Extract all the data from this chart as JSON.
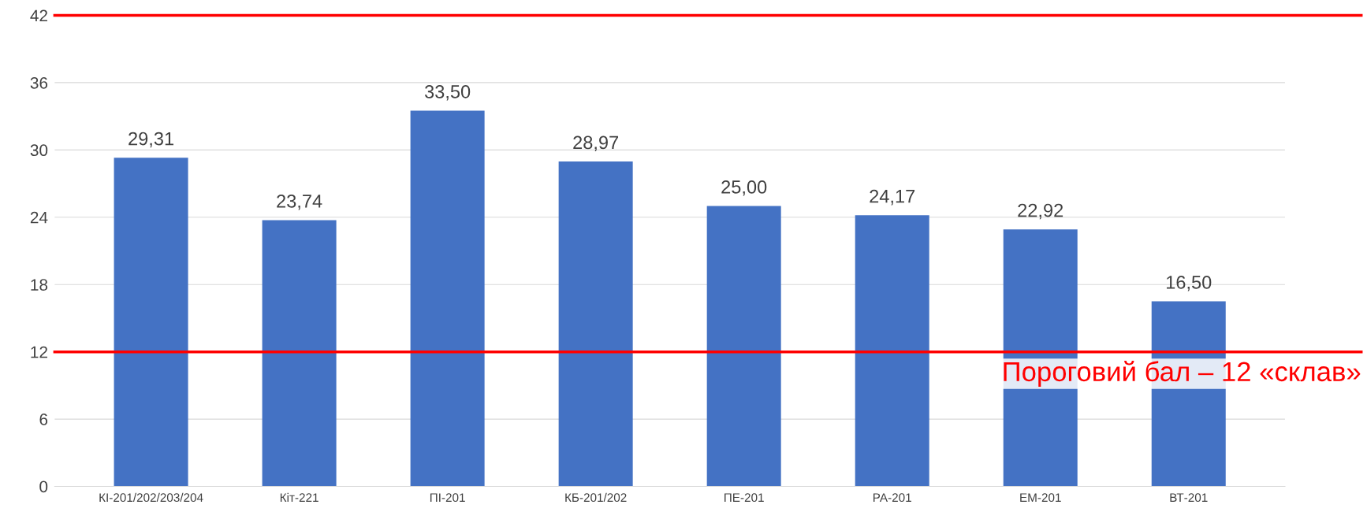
{
  "chart_data": {
    "type": "bar",
    "categories": [
      "КІ-201/202/203/204",
      "Кіт-221",
      "ПІ-201",
      "КБ-201/202",
      "ПЕ-201",
      "РА-201",
      "ЕМ-201",
      "ВТ-201"
    ],
    "values": [
      29.31,
      23.74,
      33.5,
      28.97,
      25.0,
      24.17,
      22.92,
      16.5
    ],
    "value_labels": [
      "29,31",
      "23,74",
      "33,50",
      "28,97",
      "25,00",
      "24,17",
      "22,92",
      "16,50"
    ],
    "color": "#4472c4",
    "ylim": [
      0,
      42
    ],
    "yticks": [
      0,
      6,
      12,
      18,
      24,
      30,
      36,
      42
    ],
    "grid": "y",
    "ref_lines": [
      {
        "axis": "y",
        "value": 42,
        "label": null,
        "color": "#ff0000"
      },
      {
        "axis": "y",
        "value": 12,
        "label": "Пороговий бал – 12 «склав»",
        "color": "#ff0000"
      }
    ]
  }
}
